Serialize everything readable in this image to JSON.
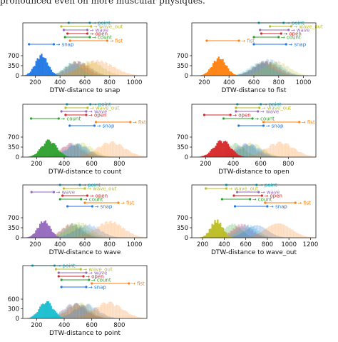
{
  "caption": "pronounced even on more muscular physiques.",
  "colors": {
    "snap": "#1f77e4",
    "fist": "#ff7f0e",
    "count": "#2ca02c",
    "open": "#d62728",
    "wave": "#9467bd",
    "wave_out": "#bcbd22",
    "point": "#17becf"
  },
  "gesture_order": [
    "point",
    "wave_out",
    "wave",
    "open",
    "count",
    "fist",
    "snap"
  ],
  "chart_data": [
    {
      "type": "histogram",
      "target": "snap",
      "xlabel": "DTW-distance to snap",
      "xlim": [
        100,
        1100
      ],
      "ylim": [
        0,
        900
      ],
      "xticks": [
        200,
        400,
        600,
        800,
        1000
      ],
      "yticks": [
        0,
        350,
        700
      ],
      "distributions": {
        "snap": {
          "mean": 250,
          "sd": 50,
          "peak": 690
        },
        "count": {
          "mean": 540,
          "sd": 90,
          "peak": 470
        },
        "open": {
          "mean": 530,
          "sd": 80,
          "peak": 470
        },
        "wave": {
          "mean": 560,
          "sd": 90,
          "peak": 450
        },
        "wave_out": {
          "mean": 640,
          "sd": 100,
          "peak": 480
        },
        "point": {
          "mean": 500,
          "sd": 70,
          "peak": 440
        },
        "fist": {
          "mean": 700,
          "sd": 130,
          "peak": 500
        }
      },
      "intervals": {
        "point": [
          470,
          640
        ],
        "wave_out": [
          410,
          650
        ],
        "wave": [
          430,
          620
        ],
        "open": [
          460,
          620
        ],
        "count": [
          440,
          640
        ],
        "fist": [
          480,
          780
        ],
        "snap": [
          150,
          350
        ]
      }
    },
    {
      "type": "histogram",
      "target": "fist",
      "xlabel": "DTW-distance to fist",
      "xlim": [
        100,
        1100
      ],
      "ylim": [
        0,
        900
      ],
      "xticks": [
        200,
        400,
        600,
        800,
        1000
      ],
      "yticks": [
        0,
        350,
        700
      ],
      "distributions": {
        "fist": {
          "mean": 320,
          "sd": 55,
          "peak": 600
        },
        "snap": {
          "mean": 720,
          "sd": 100,
          "peak": 530
        },
        "count": {
          "mean": 700,
          "sd": 100,
          "peak": 480
        },
        "open": {
          "mean": 680,
          "sd": 90,
          "peak": 460
        },
        "wave": {
          "mean": 700,
          "sd": 100,
          "peak": 450
        },
        "wave_out": {
          "mean": 780,
          "sd": 100,
          "peak": 470
        },
        "point": {
          "mean": 650,
          "sd": 90,
          "peak": 430
        }
      },
      "intervals": {
        "point": [
          640,
          840
        ],
        "wave_out": [
          730,
          900
        ],
        "wave": [
          650,
          880
        ],
        "open": [
          660,
          820
        ],
        "count": [
          600,
          800
        ],
        "fist": [
          220,
          480
        ],
        "snap": [
          600,
          860
        ]
      }
    },
    {
      "type": "histogram",
      "target": "count",
      "xlabel": "DTW-distance to count",
      "xlim": [
        100,
        1000
      ],
      "ylim": [
        0,
        900
      ],
      "xticks": [
        200,
        400,
        600,
        800
      ],
      "yticks": [
        0,
        350,
        700
      ],
      "distributions": {
        "count": {
          "mean": 290,
          "sd": 55,
          "peak": 560
        },
        "wave": {
          "mean": 460,
          "sd": 80,
          "peak": 460
        },
        "open": {
          "mean": 450,
          "sd": 70,
          "peak": 450
        },
        "point": {
          "mean": 490,
          "sd": 80,
          "peak": 440
        },
        "wave_out": {
          "mean": 520,
          "sd": 85,
          "peak": 470
        },
        "snap": {
          "mean": 500,
          "sd": 80,
          "peak": 430
        },
        "fist": {
          "mean": 740,
          "sd": 100,
          "peak": 500
        }
      },
      "intervals": {
        "point": [
          420,
          590
        ],
        "wave_out": [
          410,
          570
        ],
        "wave": [
          380,
          560
        ],
        "open": [
          410,
          560
        ],
        "count": [
          160,
          360
        ],
        "fist": [
          630,
          880
        ],
        "snap": [
          440,
          620
        ]
      }
    },
    {
      "type": "histogram",
      "target": "open",
      "xlabel": "DTW-distance to open",
      "xlim": [
        100,
        1000
      ],
      "ylim": [
        0,
        900
      ],
      "xticks": [
        200,
        400,
        600,
        800
      ],
      "yticks": [
        0,
        350,
        700
      ],
      "distributions": {
        "open": {
          "mean": 320,
          "sd": 60,
          "peak": 560
        },
        "count": {
          "mean": 410,
          "sd": 70,
          "peak": 450
        },
        "wave": {
          "mean": 480,
          "sd": 80,
          "peak": 440
        },
        "point": {
          "mean": 500,
          "sd": 80,
          "peak": 430
        },
        "wave_out": {
          "mean": 530,
          "sd": 85,
          "peak": 460
        },
        "snap": {
          "mean": 520,
          "sd": 80,
          "peak": 420
        },
        "fist": {
          "mean": 740,
          "sd": 100,
          "peak": 490
        }
      },
      "intervals": {
        "point": [
          430,
          600
        ],
        "wave_out": [
          420,
          590
        ],
        "wave": [
          420,
          580
        ],
        "open": [
          190,
          380
        ],
        "count": [
          330,
          540
        ],
        "fist": [
          620,
          880
        ],
        "snap": [
          440,
          620
        ]
      }
    },
    {
      "type": "histogram",
      "target": "wave",
      "xlabel": "DTW-distance to wave",
      "xlim": [
        100,
        1100
      ],
      "ylim": [
        0,
        900
      ],
      "xticks": [
        200,
        400,
        600,
        800,
        1000
      ],
      "yticks": [
        0,
        350,
        700
      ],
      "distributions": {
        "wave": {
          "mean": 270,
          "sd": 50,
          "peak": 560
        },
        "count": {
          "mean": 500,
          "sd": 80,
          "peak": 470
        },
        "open": {
          "mean": 490,
          "sd": 80,
          "peak": 450
        },
        "point": {
          "mean": 530,
          "sd": 85,
          "peak": 440
        },
        "wave_out": {
          "mean": 560,
          "sd": 90,
          "peak": 500
        },
        "snap": {
          "mean": 620,
          "sd": 100,
          "peak": 430
        },
        "fist": {
          "mean": 800,
          "sd": 110,
          "peak": 540
        }
      },
      "intervals": {
        "point": [
          400,
          560
        ],
        "wave_out": [
          430,
          600
        ],
        "wave": [
          170,
          350
        ],
        "open": [
          420,
          620
        ],
        "count": [
          400,
          570
        ],
        "fist": [
          600,
          870
        ],
        "snap": [
          460,
          660
        ]
      }
    },
    {
      "type": "histogram",
      "target": "wave_out",
      "xlabel": "DTW-distance to wave_out",
      "xlim": [
        100,
        1250
      ],
      "ylim": [
        0,
        900
      ],
      "xticks": [
        200,
        400,
        600,
        800,
        1000,
        1200
      ],
      "yticks": [
        0,
        350,
        700
      ],
      "distributions": {
        "wave_out": {
          "mean": 330,
          "sd": 55,
          "peak": 580
        },
        "count": {
          "mean": 480,
          "sd": 80,
          "peak": 460
        },
        "open": {
          "mean": 560,
          "sd": 90,
          "peak": 440
        },
        "wave": {
          "mean": 580,
          "sd": 90,
          "peak": 440
        },
        "point": {
          "mean": 620,
          "sd": 90,
          "peak": 420
        },
        "snap": {
          "mean": 700,
          "sd": 100,
          "peak": 420
        },
        "fist": {
          "mean": 900,
          "sd": 120,
          "peak": 480
        }
      },
      "intervals": {
        "point": [
          420,
          700
        ],
        "wave_out": [
          230,
          420
        ],
        "wave": [
          520,
          720
        ],
        "open": [
          490,
          750
        ],
        "count": [
          380,
          640
        ],
        "fist": [
          780,
          1060
        ],
        "snap": [
          500,
          800
        ]
      }
    },
    {
      "type": "histogram",
      "target": "point",
      "xlabel": "DTW-distance to point",
      "xlim": [
        100,
        1000
      ],
      "ylim": [
        0,
        800
      ],
      "xticks": [
        200,
        400,
        600,
        800
      ],
      "yticks": [
        0,
        300,
        600
      ],
      "distributions": {
        "point": {
          "mean": 270,
          "sd": 50,
          "peak": 500
        },
        "count": {
          "mean": 480,
          "sd": 80,
          "peak": 440
        },
        "open": {
          "mean": 500,
          "sd": 80,
          "peak": 430
        },
        "wave": {
          "mean": 470,
          "sd": 80,
          "peak": 440
        },
        "wave_out": {
          "mean": 530,
          "sd": 85,
          "peak": 450
        },
        "snap": {
          "mean": 560,
          "sd": 85,
          "peak": 420
        },
        "fist": {
          "mean": 720,
          "sd": 100,
          "peak": 480
        }
      },
      "intervals": {
        "point": [
          170,
          330
        ],
        "wave_out": [
          340,
          520
        ],
        "wave": [
          360,
          560
        ],
        "open": [
          360,
          540
        ],
        "count": [
          380,
          580
        ],
        "fist": [
          600,
          870
        ],
        "snap": [
          380,
          560
        ]
      }
    }
  ]
}
